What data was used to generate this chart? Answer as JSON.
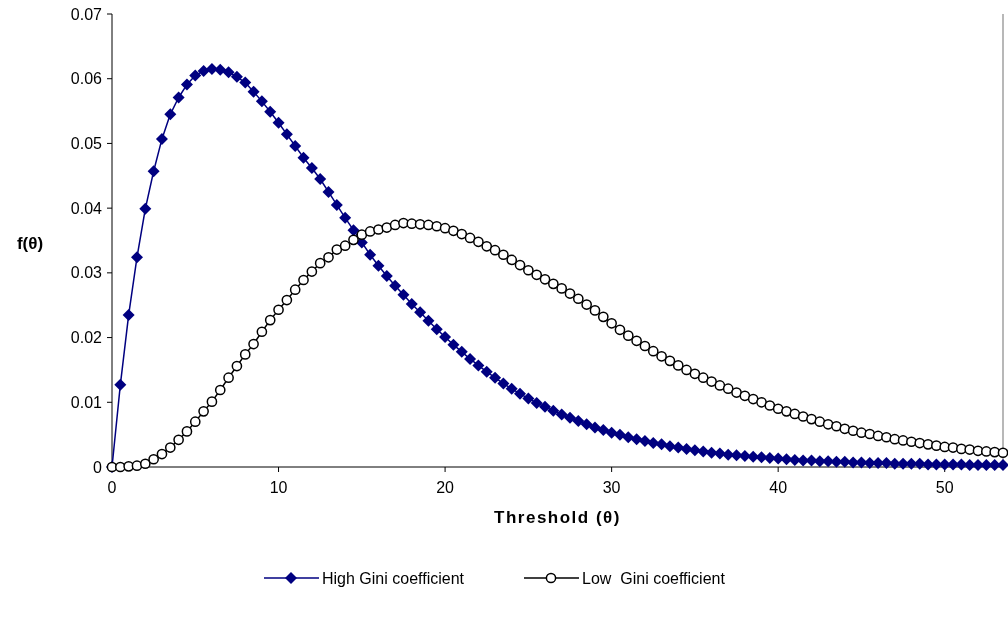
{
  "chart_data": {
    "type": "line",
    "xlabel": "Threshold (θ)",
    "ylabel": "f(θ)",
    "x": [
      0,
      0.5,
      1,
      1.5,
      2,
      2.5,
      3,
      3.5,
      4,
      4.5,
      5,
      5.5,
      6,
      6.5,
      7,
      7.5,
      8,
      8.5,
      9,
      9.5,
      10,
      10.5,
      11,
      11.5,
      12,
      12.5,
      13,
      13.5,
      14,
      14.5,
      15,
      15.5,
      16,
      16.5,
      17,
      17.5,
      18,
      18.5,
      19,
      19.5,
      20,
      20.5,
      21,
      21.5,
      22,
      22.5,
      23,
      23.5,
      24,
      24.5,
      25,
      25.5,
      26,
      26.5,
      27,
      27.5,
      28,
      28.5,
      29,
      29.5,
      30,
      30.5,
      31,
      31.5,
      32,
      32.5,
      33,
      33.5,
      34,
      34.5,
      35,
      35.5,
      36,
      36.5,
      37,
      37.5,
      38,
      38.5,
      39,
      39.5,
      40,
      40.5,
      41,
      41.5,
      42,
      42.5,
      43,
      43.5,
      44,
      44.5,
      45,
      45.5,
      46,
      46.5,
      47,
      47.5,
      48,
      48.5,
      49,
      49.5,
      50,
      50.5,
      51,
      51.5,
      52,
      52.5,
      53,
      53.5
    ],
    "series": [
      {
        "name": "High Gini coefficient",
        "color": "#000080",
        "marker": "diamond",
        "values": [
          0,
          0.0127,
          0.0235,
          0.0324,
          0.0399,
          0.0457,
          0.0507,
          0.0545,
          0.0571,
          0.0591,
          0.0605,
          0.0612,
          0.0615,
          0.0614,
          0.061,
          0.0603,
          0.0594,
          0.058,
          0.0565,
          0.0549,
          0.0532,
          0.0514,
          0.0496,
          0.0478,
          0.0462,
          0.0445,
          0.0425,
          0.0405,
          0.0385,
          0.0366,
          0.0347,
          0.0328,
          0.0311,
          0.0295,
          0.028,
          0.0266,
          0.0252,
          0.0239,
          0.0226,
          0.0213,
          0.0201,
          0.0189,
          0.0178,
          0.0167,
          0.0157,
          0.0147,
          0.0138,
          0.0129,
          0.0121,
          0.0113,
          0.0106,
          0.0099,
          0.0093,
          0.0087,
          0.0081,
          0.0076,
          0.0071,
          0.0066,
          0.0061,
          0.0057,
          0.0053,
          0.005,
          0.0046,
          0.0043,
          0.004,
          0.0037,
          0.0035,
          0.0032,
          0.003,
          0.0028,
          0.0026,
          0.0024,
          0.0022,
          0.0021,
          0.0019,
          0.0018,
          0.0017,
          0.0016,
          0.0015,
          0.0014,
          0.0013,
          0.0012,
          0.0011,
          0.001,
          0.001,
          0.0009,
          0.0009,
          0.0008,
          0.0008,
          0.0007,
          0.0007,
          0.0006,
          0.0006,
          0.0006,
          0.0005,
          0.0005,
          0.0005,
          0.0005,
          0.0004,
          0.0004,
          0.0004,
          0.0004,
          0.0004,
          0.0003,
          0.0003,
          0.0003,
          0.0003,
          0.0003
        ]
      },
      {
        "name": "Low  Gini coefficient",
        "color": "#000000",
        "marker": "circle",
        "values": [
          0,
          0,
          0.0001,
          0.0002,
          0.0005,
          0.0012,
          0.002,
          0.003,
          0.0042,
          0.0055,
          0.007,
          0.0086,
          0.0101,
          0.0119,
          0.0138,
          0.0156,
          0.0174,
          0.019,
          0.0209,
          0.0227,
          0.0243,
          0.0258,
          0.0274,
          0.0289,
          0.0302,
          0.0315,
          0.0324,
          0.0336,
          0.0342,
          0.0351,
          0.0359,
          0.0364,
          0.0367,
          0.037,
          0.0374,
          0.0377,
          0.0376,
          0.0375,
          0.0374,
          0.0372,
          0.0369,
          0.0365,
          0.036,
          0.0354,
          0.0348,
          0.0341,
          0.0335,
          0.0328,
          0.032,
          0.0312,
          0.0304,
          0.0297,
          0.029,
          0.0283,
          0.0276,
          0.0268,
          0.026,
          0.0251,
          0.0242,
          0.0232,
          0.0222,
          0.0212,
          0.0203,
          0.0195,
          0.0187,
          0.0179,
          0.0171,
          0.0164,
          0.0157,
          0.015,
          0.0144,
          0.0138,
          0.0132,
          0.0126,
          0.0121,
          0.0115,
          0.011,
          0.0105,
          0.01,
          0.0095,
          0.009,
          0.0086,
          0.0082,
          0.0078,
          0.0074,
          0.007,
          0.0066,
          0.0063,
          0.0059,
          0.0056,
          0.0053,
          0.0051,
          0.0048,
          0.0046,
          0.0043,
          0.0041,
          0.0039,
          0.0037,
          0.0035,
          0.0033,
          0.0031,
          0.003,
          0.0028,
          0.0027,
          0.0025,
          0.0024,
          0.0023,
          0.0022
        ]
      }
    ],
    "xlim": [
      0,
      53.5
    ],
    "xticks": [
      0,
      10,
      20,
      30,
      40,
      50
    ],
    "ylim": [
      0,
      0.07
    ],
    "yticks": [
      0,
      0.01,
      0.02,
      0.03,
      0.04,
      0.05,
      0.06,
      0.07
    ],
    "grid": false,
    "legend": "bottom",
    "line_style": "solid"
  }
}
